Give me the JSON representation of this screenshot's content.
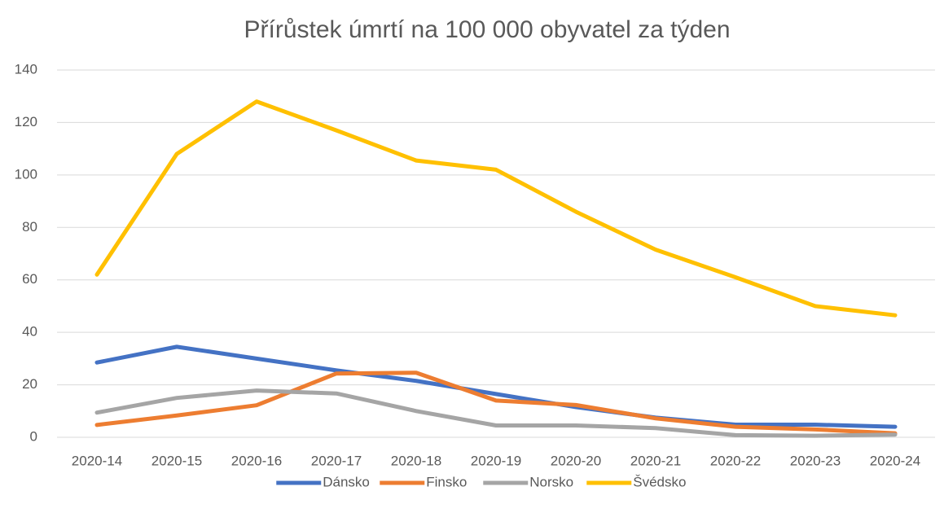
{
  "chart_data": {
    "type": "line",
    "title": "Přírůstek úmrtí na 100 000 obyvatel za týden",
    "categories": [
      "2020-14",
      "2020-15",
      "2020-16",
      "2020-17",
      "2020-18",
      "2020-19",
      "2020-20",
      "2020-21",
      "2020-22",
      "2020-23",
      "2020-24"
    ],
    "series": [
      {
        "name": "Dánsko",
        "color": "#4472c4",
        "values": [
          28.5,
          34.5,
          30,
          25.5,
          21.5,
          16.5,
          11.5,
          7.5,
          4.8,
          4.8,
          4
        ]
      },
      {
        "name": "Finsko",
        "color": "#ed7d31",
        "values": [
          4.7,
          8.3,
          12.2,
          24.3,
          24.6,
          14,
          12.3,
          7.2,
          4,
          3,
          1.5
        ]
      },
      {
        "name": "Norsko",
        "color": "#a5a5a5",
        "values": [
          9.4,
          15,
          17.8,
          16.7,
          10,
          4.5,
          4.5,
          3.5,
          0.8,
          0.6,
          1
        ]
      },
      {
        "name": "Švédsko",
        "color": "#ffc000",
        "values": [
          62,
          108,
          128,
          117,
          105.5,
          102,
          86,
          71.5,
          61,
          50,
          46.5
        ]
      }
    ],
    "ylim": [
      0,
      140
    ],
    "yticks": [
      0,
      20,
      40,
      60,
      80,
      100,
      120,
      140
    ],
    "grid": true,
    "legend": "bottom"
  }
}
